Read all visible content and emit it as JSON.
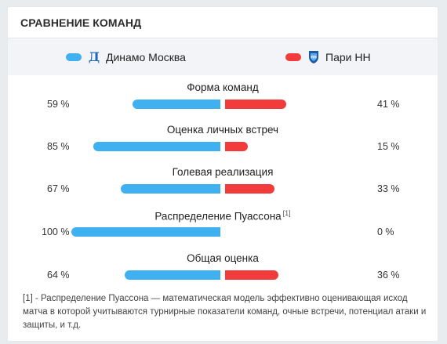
{
  "header": {
    "title": "СРАВНЕНИЕ КОМАНД"
  },
  "teams": {
    "home": {
      "name": "Динамо Москва",
      "color": "#3fb0f0",
      "logo_icon": "dynamo-logo-icon"
    },
    "away": {
      "name": "Пари НН",
      "color": "#f23b3b",
      "logo_icon": "pari-nn-shield-icon"
    }
  },
  "metrics": [
    {
      "title": "Форма команд",
      "footnote_mark": "",
      "home_label": "59 %",
      "away_label": "41 %",
      "home": 59,
      "away": 41
    },
    {
      "title": "Оценка личных встреч",
      "footnote_mark": "",
      "home_label": "85 %",
      "away_label": "15 %",
      "home": 85,
      "away": 15
    },
    {
      "title": "Голевая реализация",
      "footnote_mark": "",
      "home_label": "67 %",
      "away_label": "33 %",
      "home": 67,
      "away": 33
    },
    {
      "title": "Распределение Пуассона",
      "footnote_mark": "[1]",
      "home_label": "100 %",
      "away_label": "0 %",
      "home": 100,
      "away": 0
    },
    {
      "title": "Общая оценка",
      "footnote_mark": "",
      "home_label": "64 %",
      "away_label": "36 %",
      "home": 64,
      "away": 36
    }
  ],
  "footnote": "[1] - Распределение Пуассона — математическая модель эффективно оценивающая исход матча в которой учитываются турнирные показатели команд, очные встречи, потенциал атаки и защиты, и т.д."
}
